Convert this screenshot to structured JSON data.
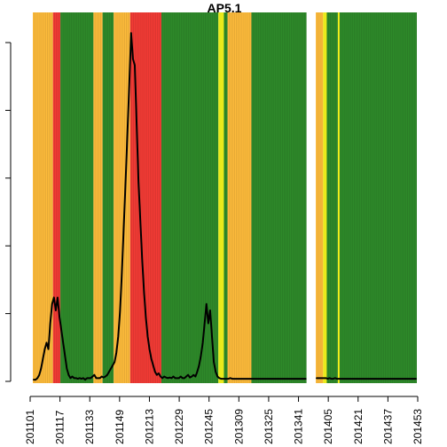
{
  "chart_data": {
    "type": "line",
    "title": "AP5.1",
    "xlabel": "",
    "ylabel": "",
    "x_tick_labels": [
      "201101",
      "201117",
      "201133",
      "201149",
      "201213",
      "201229",
      "201245",
      "201309",
      "201325",
      "201341",
      "201405",
      "201421",
      "201437",
      "201453"
    ],
    "y_ticks": 6,
    "grid": false,
    "legend": "none",
    "band_colors": {
      "orange": "#FDBB3B",
      "red": "#F23B35",
      "green": "#2E8A2A",
      "yellow": "#F4F41C",
      "white": "#FFFFFF"
    },
    "line_color": "#000000",
    "week_count": 209,
    "band_segments": [
      {
        "from_week": 1,
        "to_week": 11,
        "color": "orange"
      },
      {
        "from_week": 12,
        "to_week": 15,
        "color": "red"
      },
      {
        "from_week": 16,
        "to_week": 33,
        "color": "green"
      },
      {
        "from_week": 34,
        "to_week": 38,
        "color": "orange"
      },
      {
        "from_week": 39,
        "to_week": 44,
        "color": "green"
      },
      {
        "from_week": 45,
        "to_week": 53,
        "color": "orange"
      },
      {
        "from_week": 54,
        "to_week": 70,
        "color": "red"
      },
      {
        "from_week": 71,
        "to_week": 101,
        "color": "green"
      },
      {
        "from_week": 102,
        "to_week": 104,
        "color": "yellow"
      },
      {
        "from_week": 105,
        "to_week": 106,
        "color": "green"
      },
      {
        "from_week": 107,
        "to_week": 119,
        "color": "orange"
      },
      {
        "from_week": 120,
        "to_week": 149,
        "color": "green"
      },
      {
        "from_week": 150,
        "to_week": 154,
        "color": "white"
      },
      {
        "from_week": 155,
        "to_week": 158,
        "color": "orange"
      },
      {
        "from_week": 159,
        "to_week": 160,
        "color": "yellow"
      },
      {
        "from_week": 161,
        "to_week": 166,
        "color": "green"
      },
      {
        "from_week": 167,
        "to_week": 167,
        "color": "yellow"
      },
      {
        "from_week": 168,
        "to_week": 209,
        "color": "green"
      }
    ],
    "series": [
      {
        "points": [
          [
            1,
            0.5
          ],
          [
            2,
            0.5
          ],
          [
            3,
            1
          ],
          [
            4,
            2
          ],
          [
            5,
            4
          ],
          [
            6,
            7
          ],
          [
            7,
            10
          ],
          [
            8,
            12
          ],
          [
            9,
            10
          ],
          [
            10,
            18
          ],
          [
            11,
            24
          ],
          [
            12,
            26
          ],
          [
            13,
            22
          ],
          [
            14,
            26
          ],
          [
            15,
            20
          ],
          [
            16,
            16
          ],
          [
            17,
            12
          ],
          [
            18,
            8
          ],
          [
            19,
            4
          ],
          [
            20,
            2
          ],
          [
            21,
            1
          ],
          [
            22,
            1.5
          ],
          [
            23,
            1
          ],
          [
            24,
            1
          ],
          [
            25,
            0.8
          ],
          [
            26,
            1
          ],
          [
            27,
            0.8
          ],
          [
            28,
            1
          ],
          [
            29,
            0.5
          ],
          [
            30,
            1
          ],
          [
            31,
            1
          ],
          [
            32,
            1
          ],
          [
            33,
            1.5
          ],
          [
            34,
            2
          ],
          [
            35,
            1
          ],
          [
            36,
            1
          ],
          [
            37,
            1
          ],
          [
            38,
            1.5
          ],
          [
            39,
            1.2
          ],
          [
            40,
            1.5
          ],
          [
            41,
            2
          ],
          [
            42,
            3
          ],
          [
            43,
            4
          ],
          [
            44,
            5
          ],
          [
            45,
            6
          ],
          [
            46,
            9
          ],
          [
            47,
            14
          ],
          [
            48,
            22
          ],
          [
            49,
            34
          ],
          [
            50,
            48
          ],
          [
            51,
            62
          ],
          [
            52,
            77
          ],
          [
            53,
            92
          ],
          [
            54,
            108
          ],
          [
            55,
            100
          ],
          [
            56,
            98
          ],
          [
            57,
            80
          ],
          [
            58,
            62
          ],
          [
            59,
            50
          ],
          [
            60,
            38
          ],
          [
            61,
            28
          ],
          [
            62,
            20
          ],
          [
            63,
            14
          ],
          [
            64,
            10
          ],
          [
            65,
            7
          ],
          [
            66,
            5
          ],
          [
            67,
            3
          ],
          [
            68,
            2
          ],
          [
            69,
            2.5
          ],
          [
            70,
            1.5
          ],
          [
            71,
            1
          ],
          [
            72,
            1.5
          ],
          [
            73,
            1.2
          ],
          [
            74,
            1
          ],
          [
            75,
            1.2
          ],
          [
            76,
            1
          ],
          [
            77,
            1.5
          ],
          [
            78,
            1
          ],
          [
            79,
            1
          ],
          [
            80,
            1
          ],
          [
            81,
            1.5
          ],
          [
            82,
            1
          ],
          [
            83,
            1
          ],
          [
            84,
            1.5
          ],
          [
            85,
            2
          ],
          [
            86,
            1.2
          ],
          [
            87,
            1.5
          ],
          [
            88,
            2
          ],
          [
            89,
            1.5
          ],
          [
            90,
            3
          ],
          [
            91,
            5
          ],
          [
            92,
            8
          ],
          [
            93,
            12
          ],
          [
            94,
            18
          ],
          [
            95,
            24
          ],
          [
            96,
            18
          ],
          [
            97,
            22
          ],
          [
            98,
            14
          ],
          [
            99,
            6
          ],
          [
            100,
            3
          ],
          [
            101,
            1.5
          ],
          [
            102,
            1
          ],
          [
            103,
            0.8
          ],
          [
            104,
            0.8
          ],
          [
            105,
            0.8
          ],
          [
            106,
            0.8
          ],
          [
            107,
            0.8
          ],
          [
            108,
            1
          ],
          [
            109,
            0.8
          ],
          [
            110,
            0.8
          ],
          [
            111,
            0.8
          ],
          [
            112,
            0.8
          ],
          [
            113,
            0.8
          ],
          [
            114,
            0.8
          ],
          [
            115,
            0.8
          ],
          [
            116,
            0.8
          ],
          [
            117,
            0.8
          ],
          [
            118,
            0.8
          ],
          [
            119,
            0.8
          ],
          [
            120,
            0.8
          ],
          [
            121,
            0.8
          ],
          [
            122,
            0.8
          ],
          [
            123,
            0.8
          ],
          [
            124,
            0.8
          ],
          [
            125,
            0.8
          ],
          [
            126,
            0.8
          ],
          [
            127,
            0.8
          ],
          [
            128,
            0.8
          ],
          [
            129,
            0.8
          ],
          [
            130,
            0.8
          ],
          [
            131,
            0.8
          ],
          [
            132,
            0.8
          ],
          [
            133,
            0.8
          ],
          [
            134,
            0.8
          ],
          [
            135,
            0.8
          ],
          [
            136,
            0.8
          ],
          [
            137,
            0.8
          ],
          [
            138,
            0.8
          ],
          [
            139,
            0.8
          ],
          [
            140,
            0.8
          ],
          [
            141,
            0.8
          ],
          [
            142,
            0.8
          ],
          [
            143,
            0.8
          ],
          [
            144,
            0.8
          ],
          [
            145,
            0.8
          ],
          [
            146,
            0.8
          ],
          [
            147,
            0.8
          ],
          [
            148,
            0.8
          ],
          [
            149,
            0.8
          ],
          null,
          [
            155,
            1
          ],
          [
            156,
            1
          ],
          [
            157,
            1
          ],
          [
            158,
            1
          ],
          [
            159,
            1
          ],
          [
            160,
            1
          ],
          [
            161,
            0.8
          ],
          [
            162,
            1
          ],
          [
            163,
            0.8
          ],
          [
            164,
            0.8
          ],
          [
            165,
            1
          ],
          [
            166,
            0.8
          ],
          [
            167,
            0.8
          ],
          [
            168,
            0.8
          ],
          [
            169,
            0.8
          ],
          [
            170,
            0.8
          ],
          [
            171,
            0.8
          ],
          [
            172,
            0.8
          ],
          [
            173,
            0.8
          ],
          [
            174,
            0.8
          ],
          [
            175,
            0.8
          ],
          [
            176,
            0.8
          ],
          [
            177,
            0.8
          ],
          [
            178,
            0.8
          ],
          [
            179,
            0.8
          ],
          [
            180,
            0.8
          ],
          [
            181,
            0.8
          ],
          [
            182,
            0.8
          ],
          [
            183,
            0.8
          ],
          [
            184,
            0.8
          ],
          [
            185,
            0.8
          ],
          [
            186,
            0.8
          ],
          [
            187,
            0.8
          ],
          [
            188,
            0.8
          ],
          [
            189,
            0.8
          ],
          [
            190,
            0.8
          ],
          [
            191,
            0.8
          ],
          [
            192,
            0.8
          ],
          [
            193,
            0.8
          ],
          [
            194,
            0.8
          ],
          [
            195,
            0.8
          ],
          [
            196,
            0.8
          ],
          [
            197,
            0.8
          ],
          [
            198,
            0.8
          ],
          [
            199,
            0.8
          ],
          [
            200,
            0.8
          ],
          [
            201,
            0.8
          ],
          [
            202,
            0.8
          ],
          [
            203,
            0.8
          ],
          [
            204,
            0.8
          ],
          [
            205,
            0.8
          ],
          [
            206,
            0.8
          ],
          [
            207,
            0.8
          ],
          [
            208,
            0.8
          ],
          [
            209,
            0.8
          ]
        ]
      }
    ],
    "ylim": [
      0,
      110
    ]
  }
}
